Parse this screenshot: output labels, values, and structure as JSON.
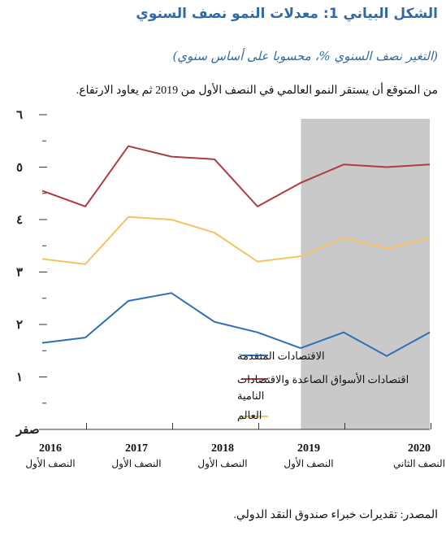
{
  "title": "الشكل البياني 1: معدلات النمو نصف السنوي",
  "subtitle": "(التغير نصف السنوي %، محسوبا على أساس سنوي)",
  "note": "من المتوقع أن يستقر النمو العالمي في النصف الأول من 2019 ثم يعاود الارتفاع.",
  "source": "المصدر: تقديرات خبراء صندوق النقد الدولي.",
  "colors": {
    "advanced": "#2e6fb8",
    "emerging": "#b03a3e",
    "world": "#f7c260",
    "projection_shade": "#c9c9c9"
  },
  "chart_data": {
    "type": "line",
    "title": "",
    "xlabel": "",
    "ylabel": "",
    "ylim": [
      0,
      6
    ],
    "yticks": [
      {
        "value": 0,
        "label": "صفر"
      },
      {
        "value": 1,
        "label": "١"
      },
      {
        "value": 2,
        "label": "٢"
      },
      {
        "value": 3,
        "label": "٣"
      },
      {
        "value": 4,
        "label": "٤"
      },
      {
        "value": 5,
        "label": "٥"
      },
      {
        "value": 6,
        "label": "٦"
      }
    ],
    "periods": [
      "2016 H1",
      "2016 H2",
      "2017 H1",
      "2017 H2",
      "2018 H1",
      "2018 H2",
      "2019 H1",
      "2019 H2",
      "2020 H1",
      "2020 H2"
    ],
    "year_labels": [
      {
        "index": 0,
        "year": "2016",
        "half": "النصف الأول"
      },
      {
        "index": 2,
        "year": "2017",
        "half": "النصف الأول"
      },
      {
        "index": 4,
        "year": "2018",
        "half": "النصف الأول"
      },
      {
        "index": 6,
        "year": "2019",
        "half": "النصف الأول"
      },
      {
        "index": 9,
        "year": "2020",
        "half": "النصف الثاني"
      }
    ],
    "projection_start_index": 5.5,
    "series": [
      {
        "key": "advanced",
        "name": "الاقتصادات المتقدمة",
        "values": [
          1.65,
          1.75,
          2.45,
          2.6,
          2.05,
          1.85,
          1.55,
          1.85,
          1.4,
          1.85
        ]
      },
      {
        "key": "emerging",
        "name": "اقتصادات الأسواق الصاعدة والاقتصادات النامية",
        "values": [
          4.55,
          4.25,
          5.4,
          5.2,
          5.15,
          4.25,
          4.7,
          5.05,
          5.0,
          5.05
        ]
      },
      {
        "key": "world",
        "name": "العالم",
        "values": [
          3.25,
          3.15,
          4.05,
          4.0,
          3.75,
          3.2,
          3.3,
          3.65,
          3.45,
          3.65
        ]
      }
    ],
    "legend_position": "bottom-center",
    "grid": false
  }
}
